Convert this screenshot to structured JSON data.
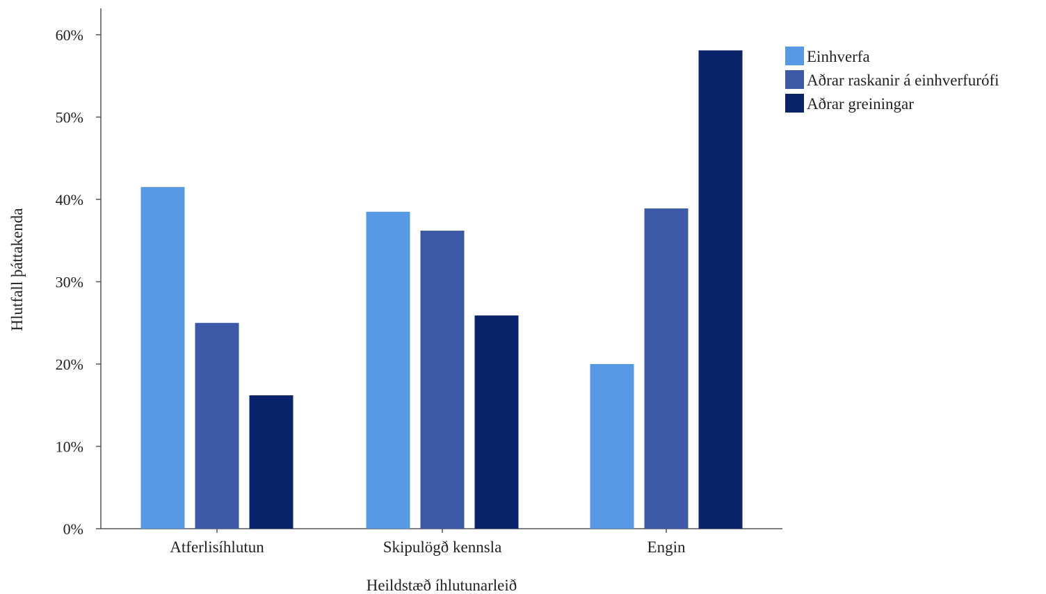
{
  "chart_data": {
    "type": "bar",
    "title": "",
    "xlabel": "Heildstæð íhlutunarleið",
    "ylabel": "Hlutfall þáttakenda",
    "categories": [
      "Atferlisíhlutun",
      "Skipulögð kennsla",
      "Engin"
    ],
    "series": [
      {
        "name": "Einhverfa",
        "color": "#5899e5",
        "values": [
          41.5,
          38.5,
          20.0
        ]
      },
      {
        "name": "Aðrar raskanir á einhverfurófi",
        "color": "#3e59a8",
        "values": [
          25.0,
          36.2,
          38.9
        ]
      },
      {
        "name": "Aðrar greiningar",
        "color": "#0a236b",
        "values": [
          16.2,
          25.9,
          58.1
        ]
      }
    ],
    "ylim": [
      0,
      60
    ],
    "yticks": [
      0,
      10,
      20,
      30,
      40,
      50,
      60
    ],
    "ytick_labels": [
      "0%",
      "10%",
      "20%",
      "30%",
      "40%",
      "50%",
      "60%"
    ],
    "grid": false,
    "legend_position": "top-right"
  }
}
